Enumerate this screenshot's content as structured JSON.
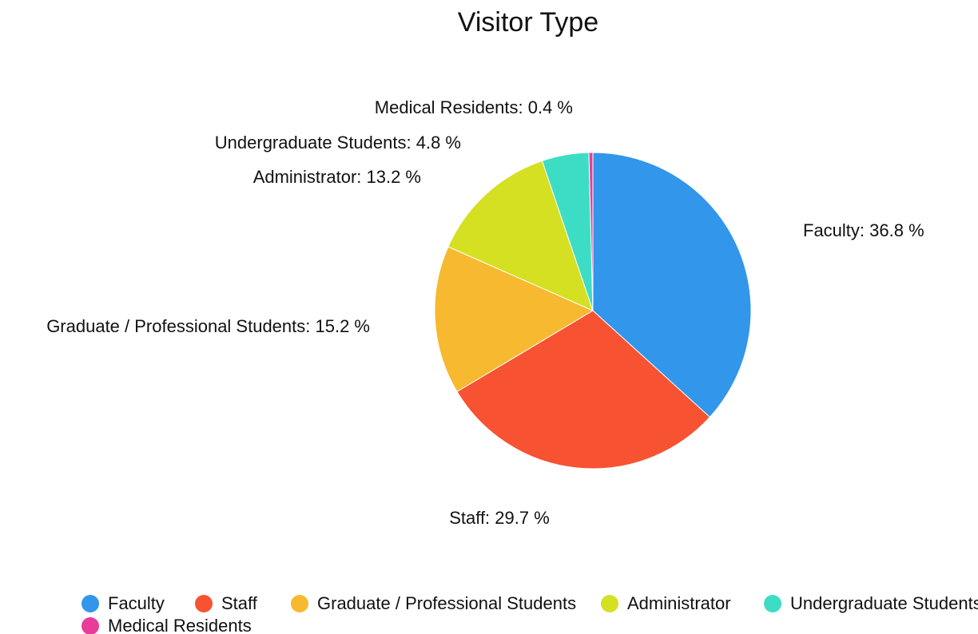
{
  "chart_data": {
    "type": "pie",
    "title": "Visitor Type",
    "categories": [
      "Faculty",
      "Staff",
      "Graduate / Professional Students",
      "Administrator",
      "Undergraduate Students",
      "Medical Residents"
    ],
    "values": [
      36.8,
      29.7,
      15.2,
      13.2,
      4.8,
      0.4
    ],
    "value_labels": [
      "Faculty: 36.8 %",
      "Staff: 29.7 %",
      "Graduate / Professional Students: 15.2 %",
      "Administrator: 13.2 %",
      "Undergraduate Students: 4.8 %",
      "Medical Residents: 0.4 %"
    ],
    "colors": [
      "#3296ea",
      "#f75231",
      "#f7b92f",
      "#d5e022",
      "#3dddc5",
      "#e73c9a"
    ],
    "legend": "bottom"
  }
}
